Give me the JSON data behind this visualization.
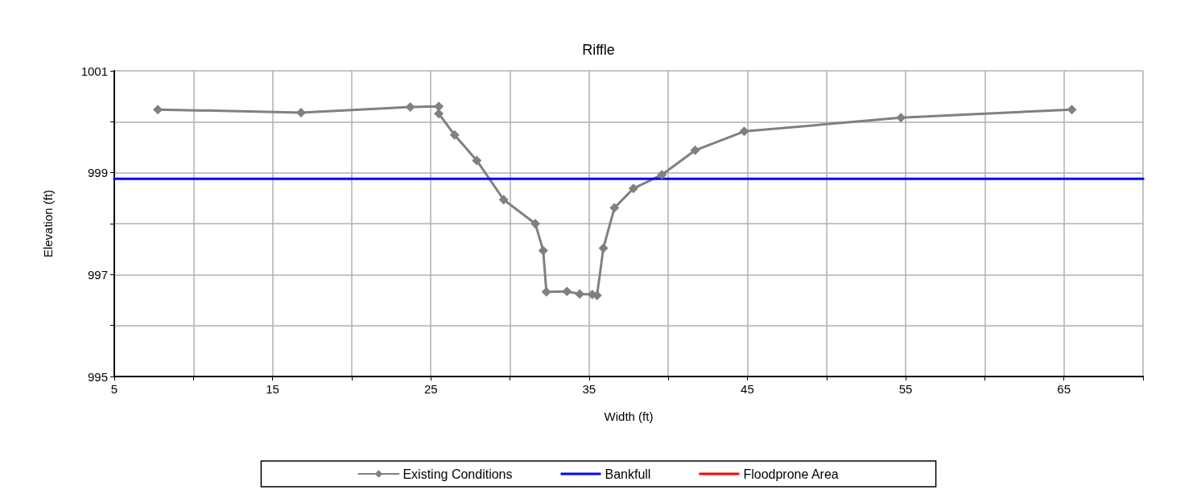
{
  "chart_data": {
    "type": "line",
    "title": "Riffle",
    "xlabel": "Width (ft)",
    "ylabel": "Elevation (ft)",
    "xlim": [
      5,
      70
    ],
    "xticks": [
      5,
      {
        "value": 10,
        "label": null
      },
      15,
      {
        "value": 20,
        "label": null
      },
      25,
      {
        "value": 30,
        "label": null
      },
      35,
      {
        "value": 40,
        "label": null
      },
      45,
      {
        "value": 50,
        "label": null
      },
      55,
      {
        "value": 60,
        "label": null
      },
      65,
      {
        "value": 70,
        "label": null
      }
    ],
    "ylim": [
      995,
      1001
    ],
    "yticks": [
      995,
      {
        "value": 996,
        "label": null
      },
      997,
      {
        "value": 998,
        "label": null
      },
      999,
      {
        "value": 1000,
        "label": null
      },
      1001
    ],
    "grid": true,
    "legend": "bottom",
    "series": [
      {
        "name": "Existing Conditions",
        "color": "#808080",
        "marker": "diamond",
        "x": [
          7.75,
          16.8,
          23.7,
          25.5,
          25.5,
          26.5,
          27.9,
          29.6,
          31.6,
          32.1,
          32.3,
          33.6,
          34.4,
          35.2,
          35.5,
          35.9,
          36.6,
          37.8,
          39.6,
          41.7,
          44.8,
          54.7,
          65.5
        ],
        "values": [
          1000.24,
          1000.18,
          1000.29,
          1000.3,
          1000.16,
          999.74,
          999.24,
          998.47,
          998.0,
          997.47,
          996.66,
          996.67,
          996.62,
          996.61,
          996.59,
          997.52,
          998.31,
          998.69,
          998.96,
          999.44,
          999.81,
          1000.08,
          1000.24
        ]
      },
      {
        "name": "Bankfull",
        "color": "#0000ff",
        "marker": "none",
        "x": [
          5,
          70
        ],
        "values": [
          998.88,
          998.88
        ]
      },
      {
        "name": "Floodprone Area",
        "color": "#ff0000",
        "marker": "none"
      }
    ]
  }
}
